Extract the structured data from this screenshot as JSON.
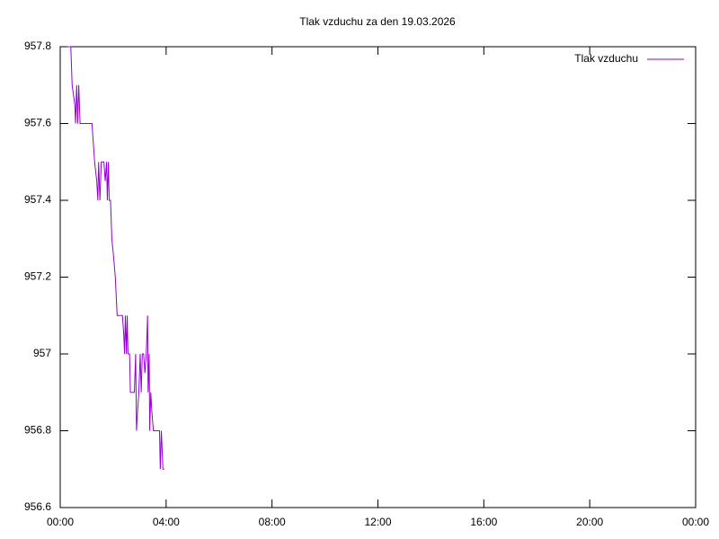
{
  "chart_data": {
    "type": "line",
    "title": "Tlak vzduchu za den 19.03.2026",
    "legend": "top-right",
    "xlim": [
      0,
      24
    ],
    "xticks": [
      {
        "value": 0,
        "label": "00:00"
      },
      {
        "value": 4,
        "label": "04:00"
      },
      {
        "value": 8,
        "label": "08:00"
      },
      {
        "value": 12,
        "label": "12:00"
      },
      {
        "value": 16,
        "label": "16:00"
      },
      {
        "value": 20,
        "label": "20:00"
      },
      {
        "value": 24,
        "label": "00:00"
      }
    ],
    "ylim": [
      956.6,
      957.8
    ],
    "yticks": [
      956.6,
      956.8,
      957,
      957.2,
      957.4,
      957.6,
      957.8
    ],
    "x": [
      0.27,
      0.4,
      0.45,
      0.55,
      0.58,
      0.62,
      0.66,
      0.7,
      0.75,
      1.0,
      1.2,
      1.25,
      1.3,
      1.38,
      1.42,
      1.45,
      1.5,
      1.55,
      1.65,
      1.7,
      1.75,
      1.78,
      1.82,
      1.85,
      1.9,
      1.95,
      2.02,
      2.08,
      2.15,
      2.35,
      2.4,
      2.43,
      2.46,
      2.5,
      2.53,
      2.56,
      2.62,
      2.65,
      2.8,
      2.85,
      2.88,
      2.92,
      2.97,
      3.02,
      3.06,
      3.1,
      3.15,
      3.2,
      3.25,
      3.3,
      3.32,
      3.36,
      3.38,
      3.42,
      3.46,
      3.52,
      3.75,
      3.78,
      3.82,
      3.88,
      3.93
    ],
    "series": [
      {
        "name": "Tlak vzduchu",
        "color": "#9400d3",
        "values": [
          957.8,
          957.8,
          957.7,
          957.65,
          957.6,
          957.7,
          957.6,
          957.7,
          957.6,
          957.6,
          957.6,
          957.55,
          957.5,
          957.45,
          957.4,
          957.5,
          957.4,
          957.5,
          957.5,
          957.45,
          957.5,
          957.4,
          957.5,
          957.4,
          957.4,
          957.3,
          957.25,
          957.2,
          957.1,
          957.1,
          957.05,
          957.0,
          957.1,
          957.0,
          957.1,
          957.0,
          957.0,
          956.9,
          956.9,
          957.0,
          956.8,
          956.85,
          956.9,
          957.0,
          956.9,
          957.0,
          957.0,
          956.95,
          957.0,
          957.1,
          956.9,
          957.0,
          956.8,
          956.9,
          956.85,
          956.8,
          956.8,
          956.7,
          956.8,
          956.7,
          956.7
        ]
      }
    ]
  }
}
